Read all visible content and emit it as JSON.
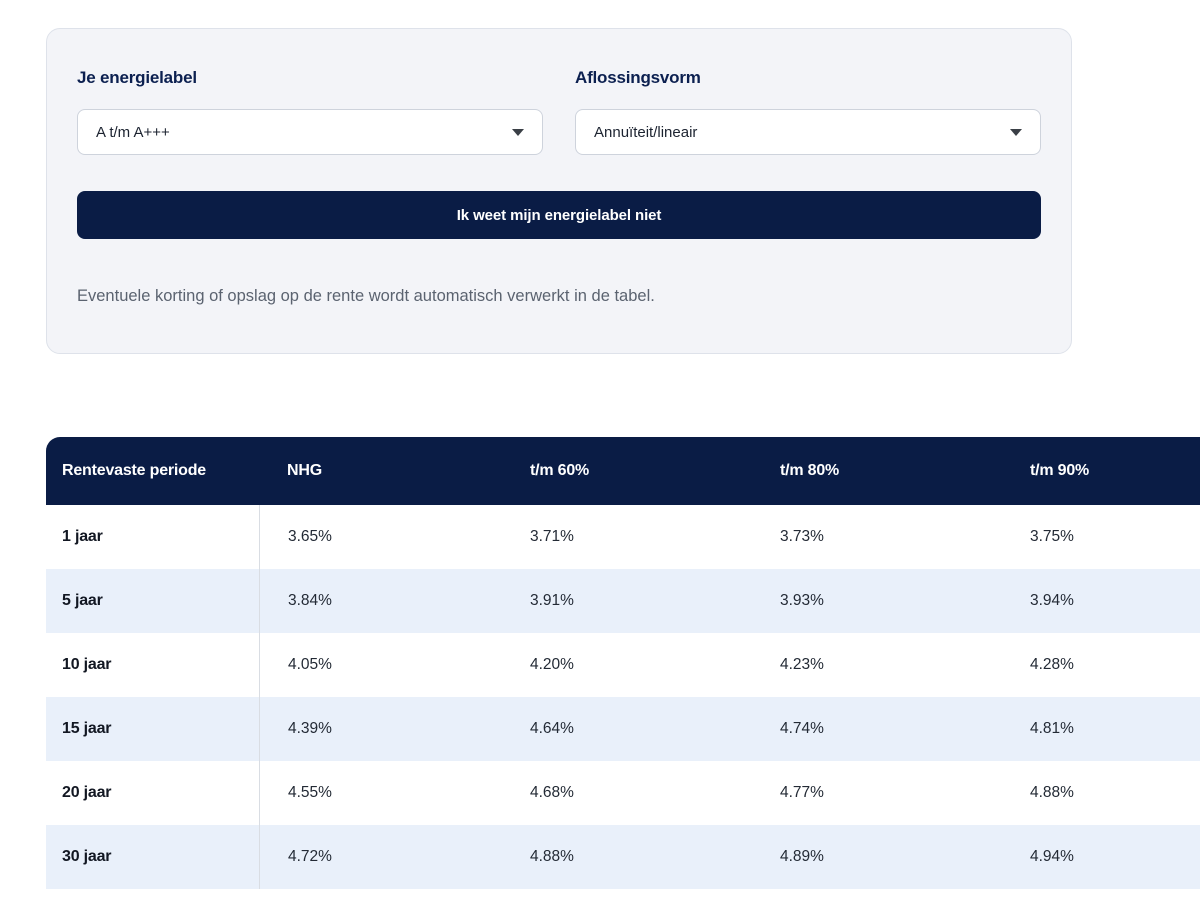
{
  "filters": {
    "energy_label": {
      "label": "Je energielabel",
      "value": "A t/m A+++"
    },
    "repayment_type": {
      "label": "Aflossingsvorm",
      "value": "Annuïteit/lineair"
    },
    "unknown_label_button": "Ik weet mijn energielabel niet",
    "note": "Eventuele korting of opslag op de rente wordt automatisch verwerkt in de tabel."
  },
  "colors": {
    "navy": "#0a1c45",
    "stripe_blue": "#e9f0fa",
    "card_background": "#f3f4f8",
    "label_navy": "#0c2050",
    "note_gray": "#5b6370"
  },
  "rate_table": {
    "columns": [
      "Rentevaste periode",
      "NHG",
      "t/m 60%",
      "t/m 80%",
      "t/m 90%"
    ],
    "rows": [
      {
        "period": "1 jaar",
        "values": [
          "3.65%",
          "3.71%",
          "3.73%",
          "3.75%"
        ]
      },
      {
        "period": "5 jaar",
        "values": [
          "3.84%",
          "3.91%",
          "3.93%",
          "3.94%"
        ]
      },
      {
        "period": "10 jaar",
        "values": [
          "4.05%",
          "4.20%",
          "4.23%",
          "4.28%"
        ]
      },
      {
        "period": "15 jaar",
        "values": [
          "4.39%",
          "4.64%",
          "4.74%",
          "4.81%"
        ]
      },
      {
        "period": "20 jaar",
        "values": [
          "4.55%",
          "4.68%",
          "4.77%",
          "4.88%"
        ]
      },
      {
        "period": "30 jaar",
        "values": [
          "4.72%",
          "4.88%",
          "4.89%",
          "4.94%"
        ]
      }
    ]
  }
}
